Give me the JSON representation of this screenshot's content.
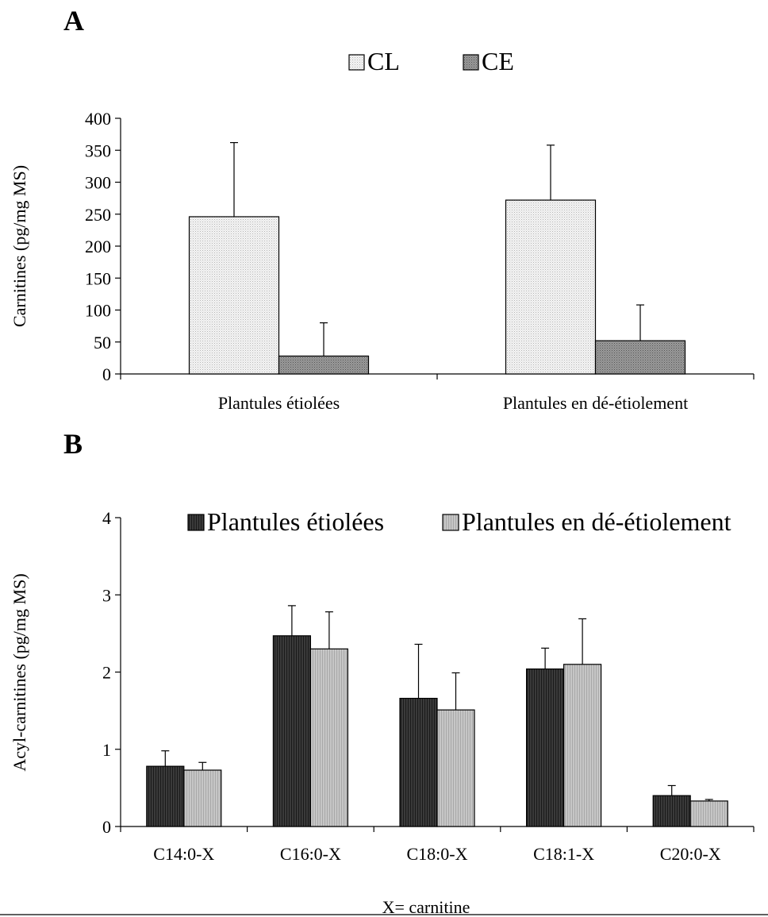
{
  "chart_data": [
    {
      "panel_label": "A",
      "type": "bar",
      "categories": [
        "Plantules étiolées",
        "Plantules en dé-étiolement"
      ],
      "series": [
        {
          "name": "CL",
          "values": [
            246,
            272
          ],
          "errors": [
            116,
            86
          ],
          "color": "#ececec",
          "pattern": "dotted-light"
        },
        {
          "name": "CE",
          "values": [
            28,
            52
          ],
          "errors": [
            52,
            56
          ],
          "color": "#8c8c8c",
          "pattern": "dotted-dark"
        }
      ],
      "ylabel": "Carnitines (pg/mg MS)",
      "ylim": [
        0,
        400
      ],
      "yticks": [
        0,
        50,
        100,
        150,
        200,
        250,
        300,
        350,
        400
      ],
      "grid": false,
      "legend_position": "top-center"
    },
    {
      "panel_label": "B",
      "type": "bar",
      "categories": [
        "C14:0-X",
        "C16:0-X",
        "C18:0-X",
        "C18:1-X",
        "C20:0-X"
      ],
      "series": [
        {
          "name": "Plantules étiolées",
          "values": [
            0.78,
            2.47,
            1.66,
            2.04,
            0.4
          ],
          "errors": [
            0.2,
            0.39,
            0.7,
            0.27,
            0.13
          ],
          "color": "#333333",
          "pattern": "dark"
        },
        {
          "name": "Plantules en dé-étiolement",
          "values": [
            0.73,
            2.3,
            1.51,
            2.1,
            0.33
          ],
          "errors": [
            0.1,
            0.48,
            0.48,
            0.59,
            0.02
          ],
          "color": "#bdbdbd",
          "pattern": "light"
        }
      ],
      "ylabel": "Acyl-carnitines (pg/mg MS)",
      "ylim": [
        0,
        4
      ],
      "yticks": [
        0,
        1,
        2,
        3,
        4
      ],
      "grid": false,
      "legend_position": "top-right",
      "xnote": "X= carnitine"
    }
  ]
}
